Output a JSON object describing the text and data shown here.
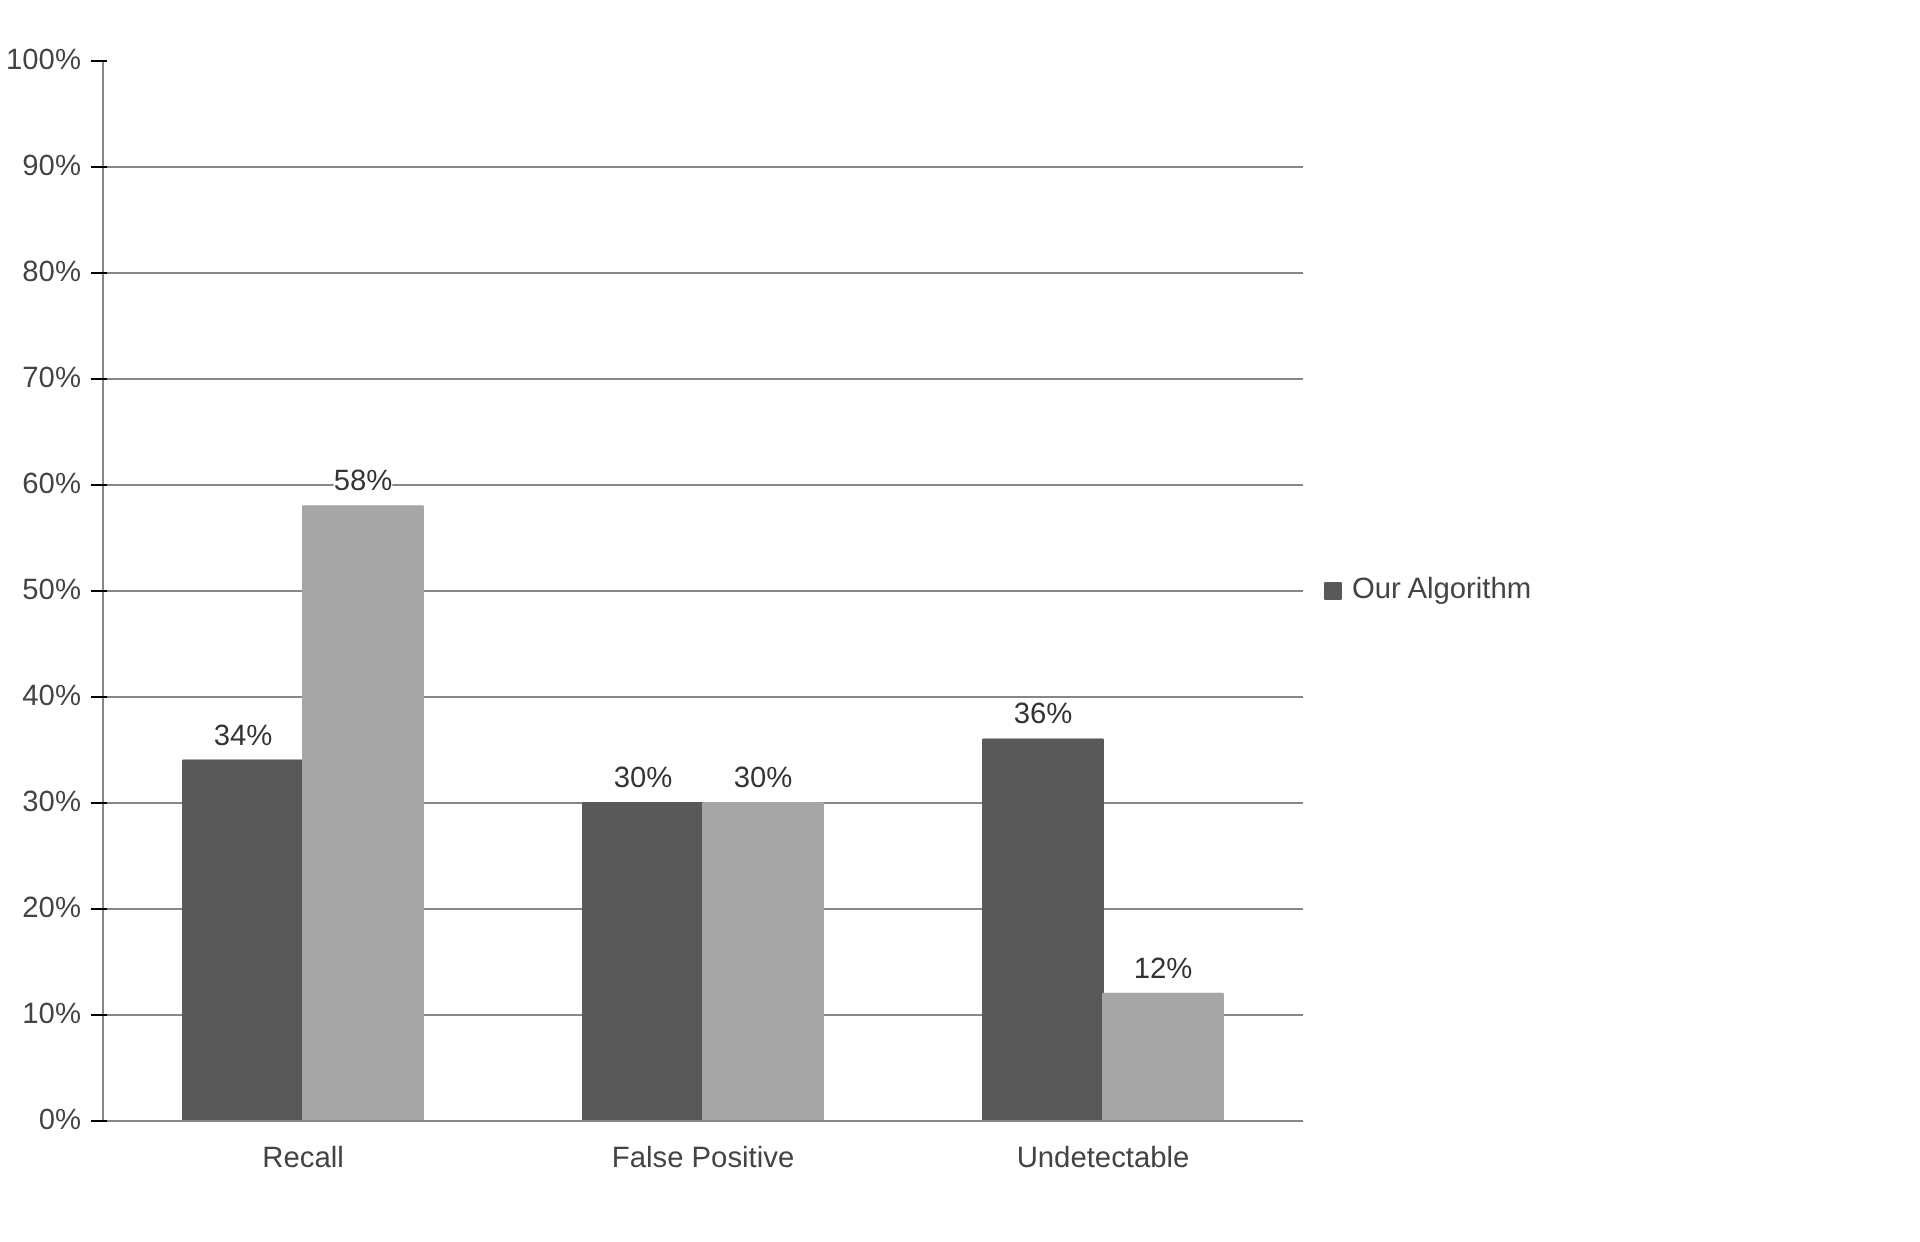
{
  "chart_data": {
    "type": "bar",
    "categories": [
      "Recall",
      "False Positive",
      "Undetectable"
    ],
    "series": [
      {
        "name": "Our Algorithm",
        "color": "#595959",
        "values": [
          34,
          30,
          36
        ],
        "value_labels": [
          "34%",
          "30%",
          "36%"
        ]
      },
      {
        "color": "#a6a6a6",
        "values": [
          58,
          30,
          12
        ],
        "value_labels": [
          "58%",
          "30%",
          "12%"
        ]
      }
    ],
    "ylim": [
      0,
      100
    ],
    "yticks": [
      {
        "value": 0,
        "label": "0%"
      },
      {
        "value": 10,
        "label": "10%"
      },
      {
        "value": 20,
        "label": "20%"
      },
      {
        "value": 30,
        "label": "30%"
      },
      {
        "value": 40,
        "label": "40%"
      },
      {
        "value": 50,
        "label": "50%"
      },
      {
        "value": 60,
        "label": "60%"
      },
      {
        "value": 70,
        "label": "70%"
      },
      {
        "value": 80,
        "label": "80%"
      },
      {
        "value": 90,
        "label": "90%"
      },
      {
        "value": 100,
        "label": "100%"
      }
    ],
    "grid": "y",
    "legend": "right"
  }
}
